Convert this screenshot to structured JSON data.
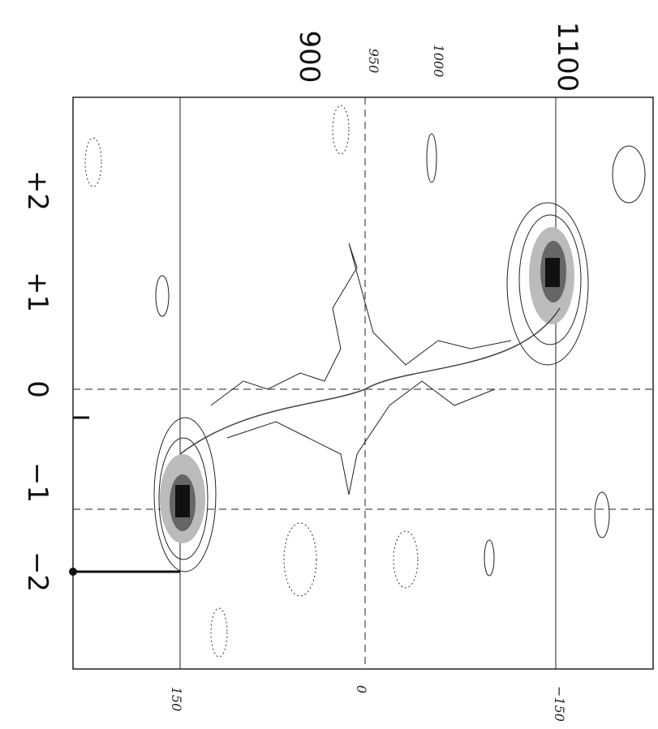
{
  "axes": {
    "top_labels": [
      "900",
      "950",
      "1000",
      "1100"
    ],
    "left_labels": [
      "+2",
      "+1",
      "0",
      "−1",
      "−2"
    ],
    "bottom_labels": [
      "150",
      "0",
      "−150"
    ]
  }
}
